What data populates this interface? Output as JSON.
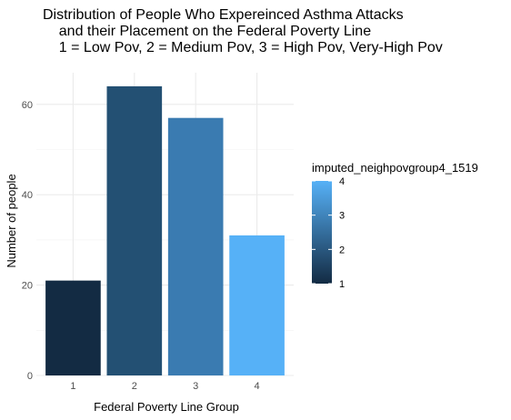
{
  "chart_data": {
    "type": "bar",
    "title_lines": [
      "Distribution of People Who Expereinced Asthma Attacks",
      "    and their Placement on the Federal Poverty Line",
      "    1 = Low Pov, 2 = Medium Pov, 3 = High Pov, Very-High Pov"
    ],
    "xlabel": "Federal Poverty Line Group",
    "ylabel": "Number of people",
    "categories": [
      "1",
      "2",
      "3",
      "4"
    ],
    "values": [
      21,
      64,
      57,
      31
    ],
    "ylim": [
      0,
      67
    ],
    "y_ticks": [
      0,
      20,
      40,
      60
    ],
    "grid": true,
    "bar_colors": [
      "#132B43",
      "#235073",
      "#3A7BB1",
      "#56B1F7"
    ],
    "legend": {
      "title": "imputed_neighpovgroup4_1519",
      "position": "right",
      "type": "colorbar",
      "low_color": "#132B43",
      "high_color": "#56B1F7",
      "ticks": [
        1,
        2,
        3,
        4
      ]
    }
  }
}
